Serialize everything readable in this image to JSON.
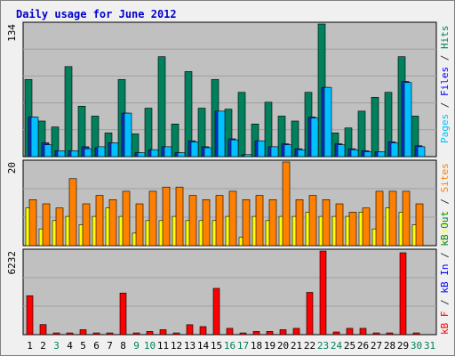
{
  "title": "Daily usage for June 2012",
  "chart_data": [
    {
      "type": "bar",
      "panel": "hits-files-pages",
      "ymax_label": "134",
      "side_legend": [
        {
          "text": "Pages",
          "color": "#00c0ff"
        },
        {
          "text": " / ",
          "color": "#333333"
        },
        {
          "text": "Files",
          "color": "#0000ff"
        },
        {
          "text": " / ",
          "color": "#333333"
        },
        {
          "text": "Hits",
          "color": "#00805c"
        }
      ],
      "categories": [
        "1",
        "2",
        "3",
        "4",
        "5",
        "6",
        "7",
        "8",
        "9",
        "10",
        "11",
        "12",
        "13",
        "14",
        "15",
        "16",
        "17",
        "18",
        "19",
        "20",
        "21",
        "22",
        "23",
        "24",
        "25",
        "26",
        "27",
        "28",
        "29",
        "30",
        "31"
      ],
      "series": [
        {
          "name": "Hits",
          "color": "#00805c",
          "values": [
            78,
            36,
            30,
            91,
            51,
            41,
            24,
            78,
            23,
            49,
            101,
            33,
            86,
            49,
            78,
            48,
            65,
            33,
            55,
            41,
            36,
            65,
            134,
            24,
            29,
            46,
            60,
            65,
            101,
            41,
            0
          ]
        },
        {
          "name": "Files",
          "color": "#1030d0",
          "values": [
            40,
            14,
            6,
            6,
            10,
            9,
            14,
            44,
            4,
            7,
            10,
            4,
            16,
            10,
            46,
            18,
            2,
            16,
            10,
            13,
            8,
            40,
            70,
            13,
            8,
            6,
            5,
            15,
            76,
            11,
            0
          ]
        },
        {
          "name": "Pages",
          "color": "#00c0ff",
          "values": [
            40,
            12,
            6,
            6,
            8,
            10,
            14,
            44,
            4,
            7,
            10,
            4,
            15,
            9,
            46,
            17,
            2,
            16,
            10,
            12,
            7,
            39,
            70,
            12,
            7,
            5,
            5,
            14,
            75,
            10,
            0
          ]
        }
      ]
    },
    {
      "type": "bar",
      "panel": "visits-sites",
      "ymax_label": "20",
      "side_legend": [
        {
          "text": "Visits",
          "color": "#ffff00"
        },
        {
          "text": " / ",
          "color": "#333333"
        },
        {
          "text": "Sites",
          "color": "#ff8000"
        }
      ],
      "series": [
        {
          "name": "Visits",
          "color": "#ffff00",
          "values": [
            9,
            4,
            6,
            7,
            5,
            7,
            9,
            7,
            3,
            6,
            6,
            7,
            6,
            6,
            6,
            7,
            2,
            7,
            6,
            7,
            7,
            8,
            7,
            7,
            7,
            8,
            4,
            9,
            8,
            5,
            0
          ]
        },
        {
          "name": "Sites",
          "color": "#ff8000",
          "values": [
            11,
            10,
            9,
            16,
            10,
            12,
            11,
            13,
            10,
            13,
            14,
            14,
            12,
            11,
            12,
            13,
            11,
            12,
            11,
            20,
            11,
            12,
            11,
            10,
            8,
            9,
            13,
            13,
            13,
            10,
            0
          ]
        }
      ]
    },
    {
      "type": "bar",
      "panel": "kbytes",
      "ymax_label": "6232",
      "side_legend": [
        {
          "text": "kB F",
          "color": "#ff0000"
        },
        {
          "text": " / ",
          "color": "#333333"
        },
        {
          "text": "kB In",
          "color": "#0000ff"
        },
        {
          "text": " / ",
          "color": "#333333"
        },
        {
          "text": "kB Out",
          "color": "#00805c"
        }
      ],
      "series": [
        {
          "name": "kB F",
          "color": "#ff0000",
          "values": [
            2900,
            750,
            130,
            130,
            370,
            130,
            130,
            3100,
            130,
            240,
            370,
            130,
            740,
            600,
            3450,
            470,
            130,
            240,
            240,
            370,
            470,
            3150,
            6232,
            200,
            470,
            470,
            130,
            130,
            6100,
            130,
            0
          ]
        }
      ]
    }
  ],
  "x_labels": [
    {
      "text": "1",
      "color": "#000000"
    },
    {
      "text": "2",
      "color": "#000000"
    },
    {
      "text": "3",
      "color": "#00805c"
    },
    {
      "text": "4",
      "color": "#000000"
    },
    {
      "text": "5",
      "color": "#000000"
    },
    {
      "text": "6",
      "color": "#000000"
    },
    {
      "text": "7",
      "color": "#000000"
    },
    {
      "text": "8",
      "color": "#000000"
    },
    {
      "text": "9",
      "color": "#00805c"
    },
    {
      "text": "10",
      "color": "#00805c"
    },
    {
      "text": "11",
      "color": "#000000"
    },
    {
      "text": "12",
      "color": "#000000"
    },
    {
      "text": "13",
      "color": "#000000"
    },
    {
      "text": "14",
      "color": "#000000"
    },
    {
      "text": "15",
      "color": "#000000"
    },
    {
      "text": "16",
      "color": "#00805c"
    },
    {
      "text": "17",
      "color": "#00805c"
    },
    {
      "text": "18",
      "color": "#000000"
    },
    {
      "text": "19",
      "color": "#000000"
    },
    {
      "text": "20",
      "color": "#000000"
    },
    {
      "text": "21",
      "color": "#000000"
    },
    {
      "text": "22",
      "color": "#000000"
    },
    {
      "text": "23",
      "color": "#00805c"
    },
    {
      "text": "24",
      "color": "#00805c"
    },
    {
      "text": "25",
      "color": "#000000"
    },
    {
      "text": "26",
      "color": "#000000"
    },
    {
      "text": "27",
      "color": "#000000"
    },
    {
      "text": "28",
      "color": "#000000"
    },
    {
      "text": "29",
      "color": "#000000"
    },
    {
      "text": "30",
      "color": "#00805c"
    },
    {
      "text": "31",
      "color": "#00805c"
    }
  ],
  "colors": {
    "plot_bg": "#c0c0c0",
    "frame_bg": "#f0f0f0",
    "grid": "#a0a0a0",
    "title": "#0000cc"
  }
}
